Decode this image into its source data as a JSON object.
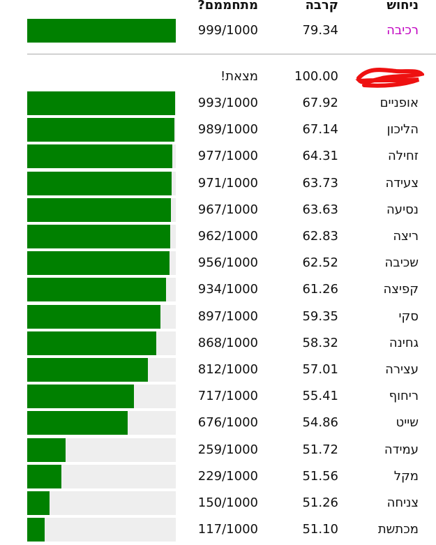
{
  "header": {
    "guess": "ניחוש",
    "similarity": "קרבה",
    "rank": "מתחממם?"
  },
  "max_rank": 1000,
  "latest": {
    "guess": "רכיבה",
    "similarity": "79.34",
    "rank": {
      "value": 999,
      "label": "999/1000"
    }
  },
  "found": {
    "similarity": "100.00",
    "status": "מצאת!"
  },
  "rows": [
    {
      "guess": "אופניים",
      "similarity": "67.92",
      "rank": {
        "value": 993,
        "label": "993/1000"
      }
    },
    {
      "guess": "הליכון",
      "similarity": "67.14",
      "rank": {
        "value": 989,
        "label": "989/1000"
      }
    },
    {
      "guess": "זחילה",
      "similarity": "64.31",
      "rank": {
        "value": 977,
        "label": "977/1000"
      }
    },
    {
      "guess": "צעידה",
      "similarity": "63.73",
      "rank": {
        "value": 971,
        "label": "971/1000"
      }
    },
    {
      "guess": "נסיעה",
      "similarity": "63.63",
      "rank": {
        "value": 967,
        "label": "967/1000"
      }
    },
    {
      "guess": "ריצה",
      "similarity": "62.83",
      "rank": {
        "value": 962,
        "label": "962/1000"
      }
    },
    {
      "guess": "שכיבה",
      "similarity": "62.52",
      "rank": {
        "value": 956,
        "label": "956/1000"
      }
    },
    {
      "guess": "קפיצה",
      "similarity": "61.26",
      "rank": {
        "value": 934,
        "label": "934/1000"
      }
    },
    {
      "guess": "סקי",
      "similarity": "59.35",
      "rank": {
        "value": 897,
        "label": "897/1000"
      }
    },
    {
      "guess": "גחינה",
      "similarity": "58.32",
      "rank": {
        "value": 868,
        "label": "868/1000"
      }
    },
    {
      "guess": "עצירה",
      "similarity": "57.01",
      "rank": {
        "value": 812,
        "label": "812/1000"
      }
    },
    {
      "guess": "ריחוף",
      "similarity": "55.41",
      "rank": {
        "value": 717,
        "label": "717/1000"
      }
    },
    {
      "guess": "שייט",
      "similarity": "54.86",
      "rank": {
        "value": 676,
        "label": "676/1000"
      }
    },
    {
      "guess": "עמידה",
      "similarity": "51.72",
      "rank": {
        "value": 259,
        "label": "259/1000"
      }
    },
    {
      "guess": "מקל",
      "similarity": "51.56",
      "rank": {
        "value": 229,
        "label": "229/1000"
      }
    },
    {
      "guess": "צניחה",
      "similarity": "51.26",
      "rank": {
        "value": 150,
        "label": "150/1000"
      }
    },
    {
      "guess": "מכתשת",
      "similarity": "51.10",
      "rank": {
        "value": 117,
        "label": "117/1000"
      }
    }
  ]
}
